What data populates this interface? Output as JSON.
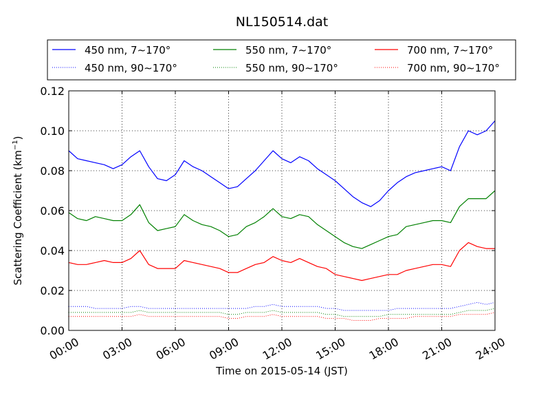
{
  "chart_data": {
    "type": "line",
    "title": "NL150514.dat",
    "xlabel": "Time on 2015-05-14 (JST)",
    "ylabel": "Scattering Coefficient (km",
    "ylabel_sup": "−1",
    "ylabel_close": ")",
    "x_unit": "hours",
    "xlim": [
      0,
      24
    ],
    "ylim": [
      0,
      0.12
    ],
    "grid": true,
    "legend_position": "top (above plot)",
    "x_ticks": [
      {
        "value": 0,
        "label": "00:00"
      },
      {
        "value": 3,
        "label": "03:00"
      },
      {
        "value": 6,
        "label": "06:00"
      },
      {
        "value": 9,
        "label": "09:00"
      },
      {
        "value": 12,
        "label": "12:00"
      },
      {
        "value": 15,
        "label": "15:00"
      },
      {
        "value": 18,
        "label": "18:00"
      },
      {
        "value": 21,
        "label": "21:00"
      },
      {
        "value": 24,
        "label": "24:00"
      }
    ],
    "y_ticks": [
      {
        "value": 0,
        "label": "0.00"
      },
      {
        "value": 0.02,
        "label": "0.02"
      },
      {
        "value": 0.04,
        "label": "0.04"
      },
      {
        "value": 0.06,
        "label": "0.06"
      },
      {
        "value": 0.08,
        "label": "0.08"
      },
      {
        "value": 0.1,
        "label": "0.10"
      },
      {
        "value": 0.12,
        "label": "0.12"
      }
    ],
    "x": [
      0,
      0.5,
      1,
      1.5,
      2,
      2.5,
      3,
      3.5,
      4,
      4.5,
      5,
      5.5,
      6,
      6.5,
      7,
      7.5,
      8,
      8.5,
      9,
      9.5,
      10,
      10.5,
      11,
      11.5,
      12,
      12.5,
      13,
      13.5,
      14,
      14.5,
      15,
      15.5,
      16,
      16.5,
      17,
      17.5,
      18,
      18.5,
      19,
      19.5,
      20,
      20.5,
      21,
      21.5,
      22,
      22.5,
      23,
      23.5,
      24
    ],
    "series": [
      {
        "name": "450 nm, 7∼170°",
        "color": "#0000ff",
        "style": "solid",
        "values": [
          0.09,
          0.086,
          0.085,
          0.084,
          0.083,
          0.081,
          0.083,
          0.087,
          0.09,
          0.082,
          0.076,
          0.075,
          0.078,
          0.085,
          0.082,
          0.08,
          0.077,
          0.074,
          0.071,
          0.072,
          0.076,
          0.08,
          0.085,
          0.09,
          0.086,
          0.084,
          0.087,
          0.085,
          0.081,
          0.078,
          0.075,
          0.071,
          0.067,
          0.064,
          0.062,
          0.065,
          0.07,
          0.074,
          0.077,
          0.079,
          0.08,
          0.081,
          0.082,
          0.08,
          0.092,
          0.1,
          0.098,
          0.1,
          0.105
        ]
      },
      {
        "name": "550 nm, 7∼170°",
        "color": "#008000",
        "style": "solid",
        "values": [
          0.059,
          0.056,
          0.055,
          0.057,
          0.056,
          0.055,
          0.055,
          0.058,
          0.063,
          0.054,
          0.05,
          0.051,
          0.052,
          0.058,
          0.055,
          0.053,
          0.052,
          0.05,
          0.047,
          0.048,
          0.052,
          0.054,
          0.057,
          0.061,
          0.057,
          0.056,
          0.058,
          0.057,
          0.053,
          0.05,
          0.047,
          0.044,
          0.042,
          0.041,
          0.043,
          0.045,
          0.047,
          0.048,
          0.052,
          0.053,
          0.054,
          0.055,
          0.055,
          0.054,
          0.062,
          0.066,
          0.066,
          0.066,
          0.07
        ]
      },
      {
        "name": "700 nm, 7∼170°",
        "color": "#ff0000",
        "style": "solid",
        "values": [
          0.034,
          0.033,
          0.033,
          0.034,
          0.035,
          0.034,
          0.034,
          0.036,
          0.04,
          0.033,
          0.031,
          0.031,
          0.031,
          0.035,
          0.034,
          0.033,
          0.032,
          0.031,
          0.029,
          0.029,
          0.031,
          0.033,
          0.034,
          0.037,
          0.035,
          0.034,
          0.036,
          0.034,
          0.032,
          0.031,
          0.028,
          0.027,
          0.026,
          0.025,
          0.026,
          0.027,
          0.028,
          0.028,
          0.03,
          0.031,
          0.032,
          0.033,
          0.033,
          0.032,
          0.04,
          0.044,
          0.042,
          0.041,
          0.041
        ]
      },
      {
        "name": "450 nm, 90∼170°",
        "color": "#0000ff",
        "style": "dotted",
        "values": [
          0.012,
          0.012,
          0.012,
          0.011,
          0.011,
          0.011,
          0.011,
          0.012,
          0.012,
          0.011,
          0.011,
          0.011,
          0.011,
          0.011,
          0.011,
          0.011,
          0.011,
          0.011,
          0.011,
          0.011,
          0.011,
          0.012,
          0.012,
          0.013,
          0.012,
          0.012,
          0.012,
          0.012,
          0.012,
          0.011,
          0.011,
          0.01,
          0.01,
          0.01,
          0.01,
          0.01,
          0.01,
          0.011,
          0.011,
          0.011,
          0.011,
          0.011,
          0.011,
          0.011,
          0.012,
          0.013,
          0.014,
          0.013,
          0.014
        ]
      },
      {
        "name": "550 nm, 90∼170°",
        "color": "#008000",
        "style": "dotted",
        "values": [
          0.009,
          0.009,
          0.009,
          0.009,
          0.009,
          0.009,
          0.009,
          0.009,
          0.01,
          0.009,
          0.009,
          0.009,
          0.009,
          0.009,
          0.009,
          0.009,
          0.009,
          0.009,
          0.008,
          0.008,
          0.009,
          0.009,
          0.009,
          0.01,
          0.009,
          0.009,
          0.009,
          0.009,
          0.009,
          0.008,
          0.008,
          0.007,
          0.007,
          0.007,
          0.007,
          0.007,
          0.008,
          0.008,
          0.008,
          0.008,
          0.008,
          0.008,
          0.008,
          0.008,
          0.009,
          0.01,
          0.01,
          0.01,
          0.011
        ]
      },
      {
        "name": "700 nm, 90∼170°",
        "color": "#ff0000",
        "style": "dotted",
        "values": [
          0.007,
          0.007,
          0.007,
          0.007,
          0.007,
          0.007,
          0.007,
          0.007,
          0.008,
          0.007,
          0.007,
          0.007,
          0.007,
          0.007,
          0.007,
          0.007,
          0.007,
          0.007,
          0.006,
          0.006,
          0.007,
          0.007,
          0.007,
          0.008,
          0.007,
          0.007,
          0.007,
          0.007,
          0.007,
          0.006,
          0.006,
          0.006,
          0.005,
          0.005,
          0.005,
          0.006,
          0.006,
          0.006,
          0.006,
          0.007,
          0.007,
          0.007,
          0.007,
          0.007,
          0.008,
          0.008,
          0.008,
          0.008,
          0.009
        ]
      }
    ]
  }
}
